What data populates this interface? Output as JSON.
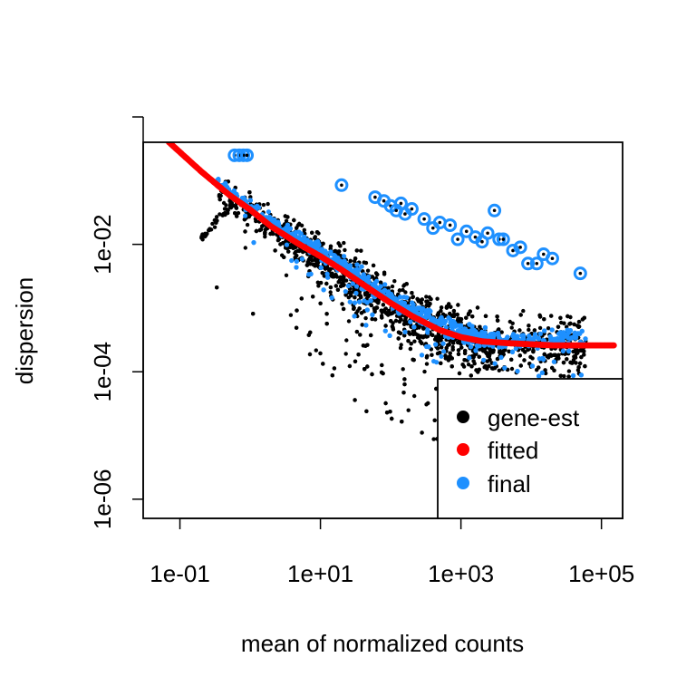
{
  "chart_data": {
    "type": "scatter",
    "title": "",
    "xlabel": "mean of normalized counts",
    "ylabel": "dispersion",
    "x_scale": "log10",
    "y_scale": "log10",
    "xlim": [
      0.03,
      200000
    ],
    "ylim": [
      5e-07,
      0.4
    ],
    "x_ticks": [
      {
        "value": 0.1,
        "label": "1e-01"
      },
      {
        "value": 10,
        "label": "1e+01"
      },
      {
        "value": 1000,
        "label": "1e+03"
      },
      {
        "value": 100000,
        "label": "1e+05"
      }
    ],
    "y_ticks": [
      {
        "value": 1e-06,
        "label": "1e-06"
      },
      {
        "value": 0.0001,
        "label": "1e-04"
      },
      {
        "value": 0.01,
        "label": "1e-02"
      },
      {
        "value": 1,
        "label": ""
      }
    ],
    "grid": false,
    "legend": {
      "position": "bottom-right",
      "entries": [
        {
          "label": "gene-est",
          "color": "#000000"
        },
        {
          "label": "fitted",
          "color": "#ff0000"
        },
        {
          "label": "final",
          "color": "#1e90ff"
        }
      ]
    },
    "series": [
      {
        "name": "fitted",
        "color": "#ff0000",
        "points": [
          [
            0.07,
            0.4
          ],
          [
            0.1,
            0.28
          ],
          [
            0.2,
            0.14
          ],
          [
            0.5,
            0.06
          ],
          [
            1,
            0.035
          ],
          [
            2,
            0.019
          ],
          [
            5,
            0.01
          ],
          [
            10,
            0.0065
          ],
          [
            20,
            0.004
          ],
          [
            50,
            0.002
          ],
          [
            100,
            0.0012
          ],
          [
            200,
            0.00075
          ],
          [
            500,
            0.00045
          ],
          [
            1000,
            0.00035
          ],
          [
            2000,
            0.0003
          ],
          [
            5000,
            0.00028
          ],
          [
            10000,
            0.00027
          ],
          [
            20000,
            0.00026
          ],
          [
            50000,
            0.00026
          ],
          [
            100000,
            0.00026
          ],
          [
            150000,
            0.00026
          ]
        ]
      },
      {
        "name": "final-outliers",
        "color": "#1e90ff",
        "points": [
          [
            0.6,
            0.25
          ],
          [
            0.7,
            0.25
          ],
          [
            0.8,
            0.25
          ],
          [
            0.9,
            0.25
          ],
          [
            20,
            0.085
          ],
          [
            60,
            0.055
          ],
          [
            80,
            0.048
          ],
          [
            100,
            0.04
          ],
          [
            120,
            0.034
          ],
          [
            140,
            0.044
          ],
          [
            160,
            0.03
          ],
          [
            200,
            0.036
          ],
          [
            300,
            0.025
          ],
          [
            400,
            0.018
          ],
          [
            500,
            0.022
          ],
          [
            700,
            0.02
          ],
          [
            900,
            0.012
          ],
          [
            1200,
            0.016
          ],
          [
            1600,
            0.013
          ],
          [
            2000,
            0.011
          ],
          [
            2400,
            0.015
          ],
          [
            3000,
            0.034
          ],
          [
            3500,
            0.012
          ],
          [
            4000,
            0.012
          ],
          [
            5500,
            0.008
          ],
          [
            7000,
            0.009
          ],
          [
            9000,
            0.005
          ],
          [
            12000,
            0.005
          ],
          [
            15000,
            0.007
          ],
          [
            20000,
            0.006
          ],
          [
            50000,
            0.0035
          ]
        ]
      }
    ]
  }
}
